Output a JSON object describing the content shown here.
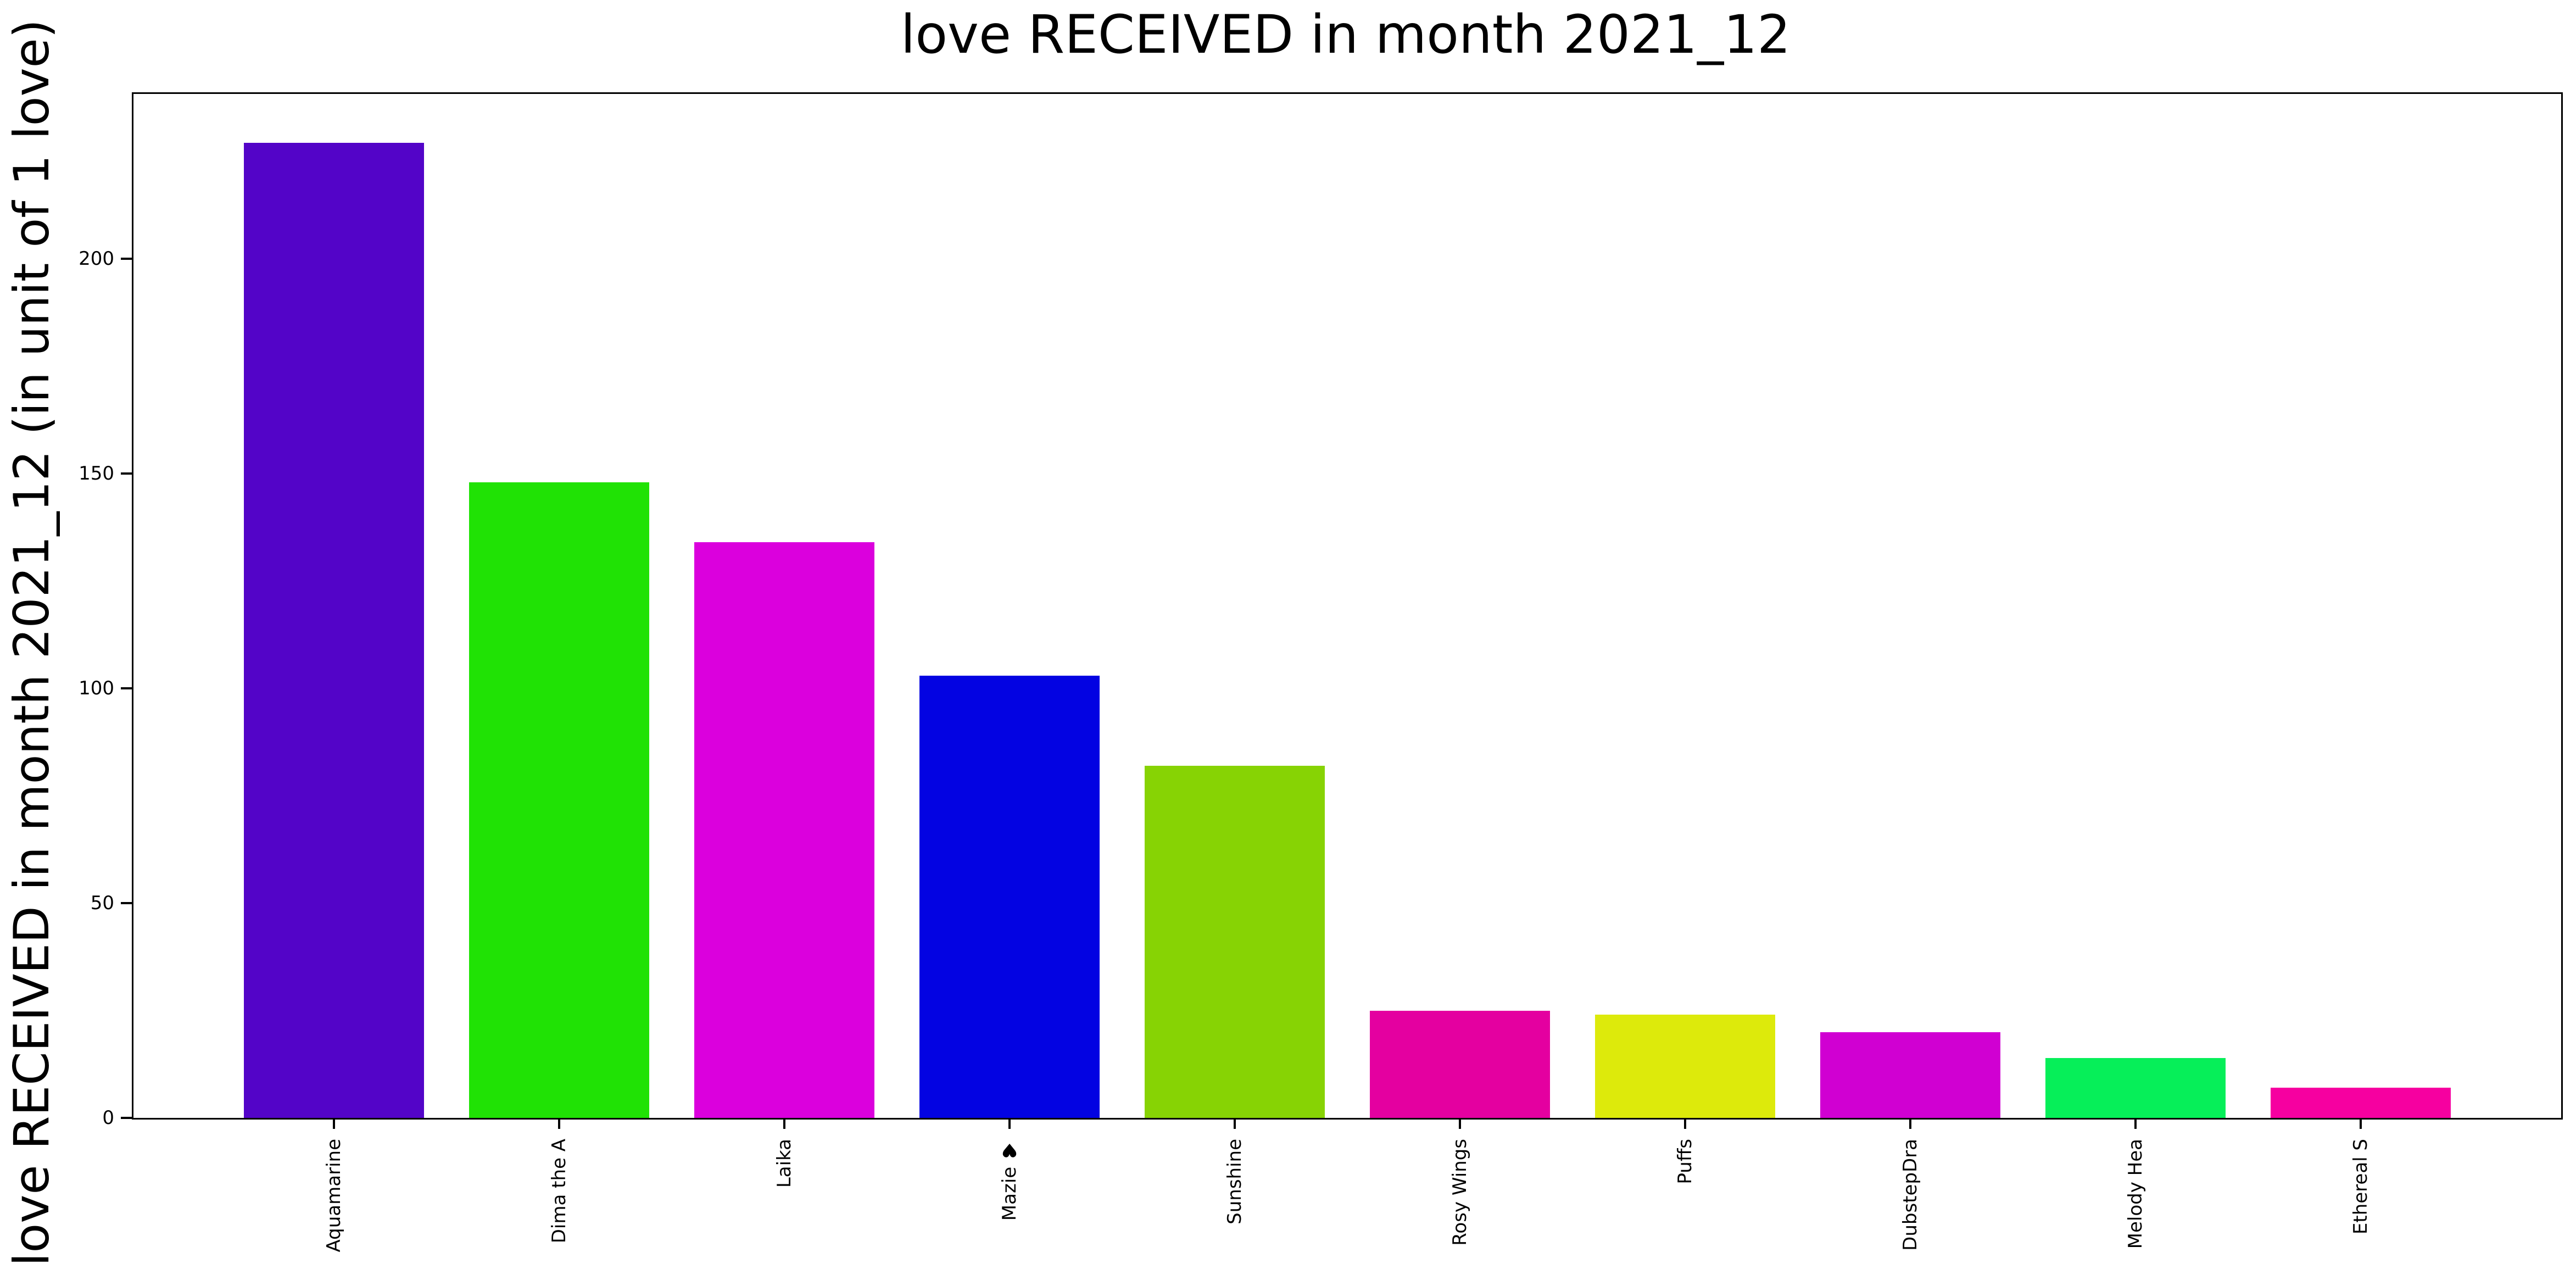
{
  "chart_data": {
    "type": "bar",
    "title": "love RECEIVED in month 2021_12",
    "ylabel": "love RECEIVED in month 2021_12 (in unit of 1 love)",
    "xlabel": "",
    "categories": [
      "Aquamarine",
      "Dima the A",
      "Laika",
      "Mazie ♥",
      "Sunshine",
      "Rosy Wings",
      "Puffs",
      "DubstepDra",
      "Melody Hea",
      "Ethereal S"
    ],
    "values": [
      227,
      148,
      134,
      103,
      82,
      25,
      24,
      20,
      14,
      7
    ],
    "bar_colors": [
      "#5304C8",
      "#20E205",
      "#DB00DD",
      "#0303E2",
      "#87D304",
      "#E400A0",
      "#DDEA0B",
      "#D000D2",
      "#06EF59",
      "#F600A0"
    ],
    "yticks": [
      0,
      50,
      100,
      150,
      200
    ],
    "ylim": [
      0,
      238.35
    ],
    "xlim": [
      -0.89,
      9.89
    ],
    "bar_width": 0.8,
    "grid": false,
    "legend_position": "none",
    "background_color": "#ffffff",
    "spine_color": "#000000",
    "tick_label_color": "#000000"
  }
}
